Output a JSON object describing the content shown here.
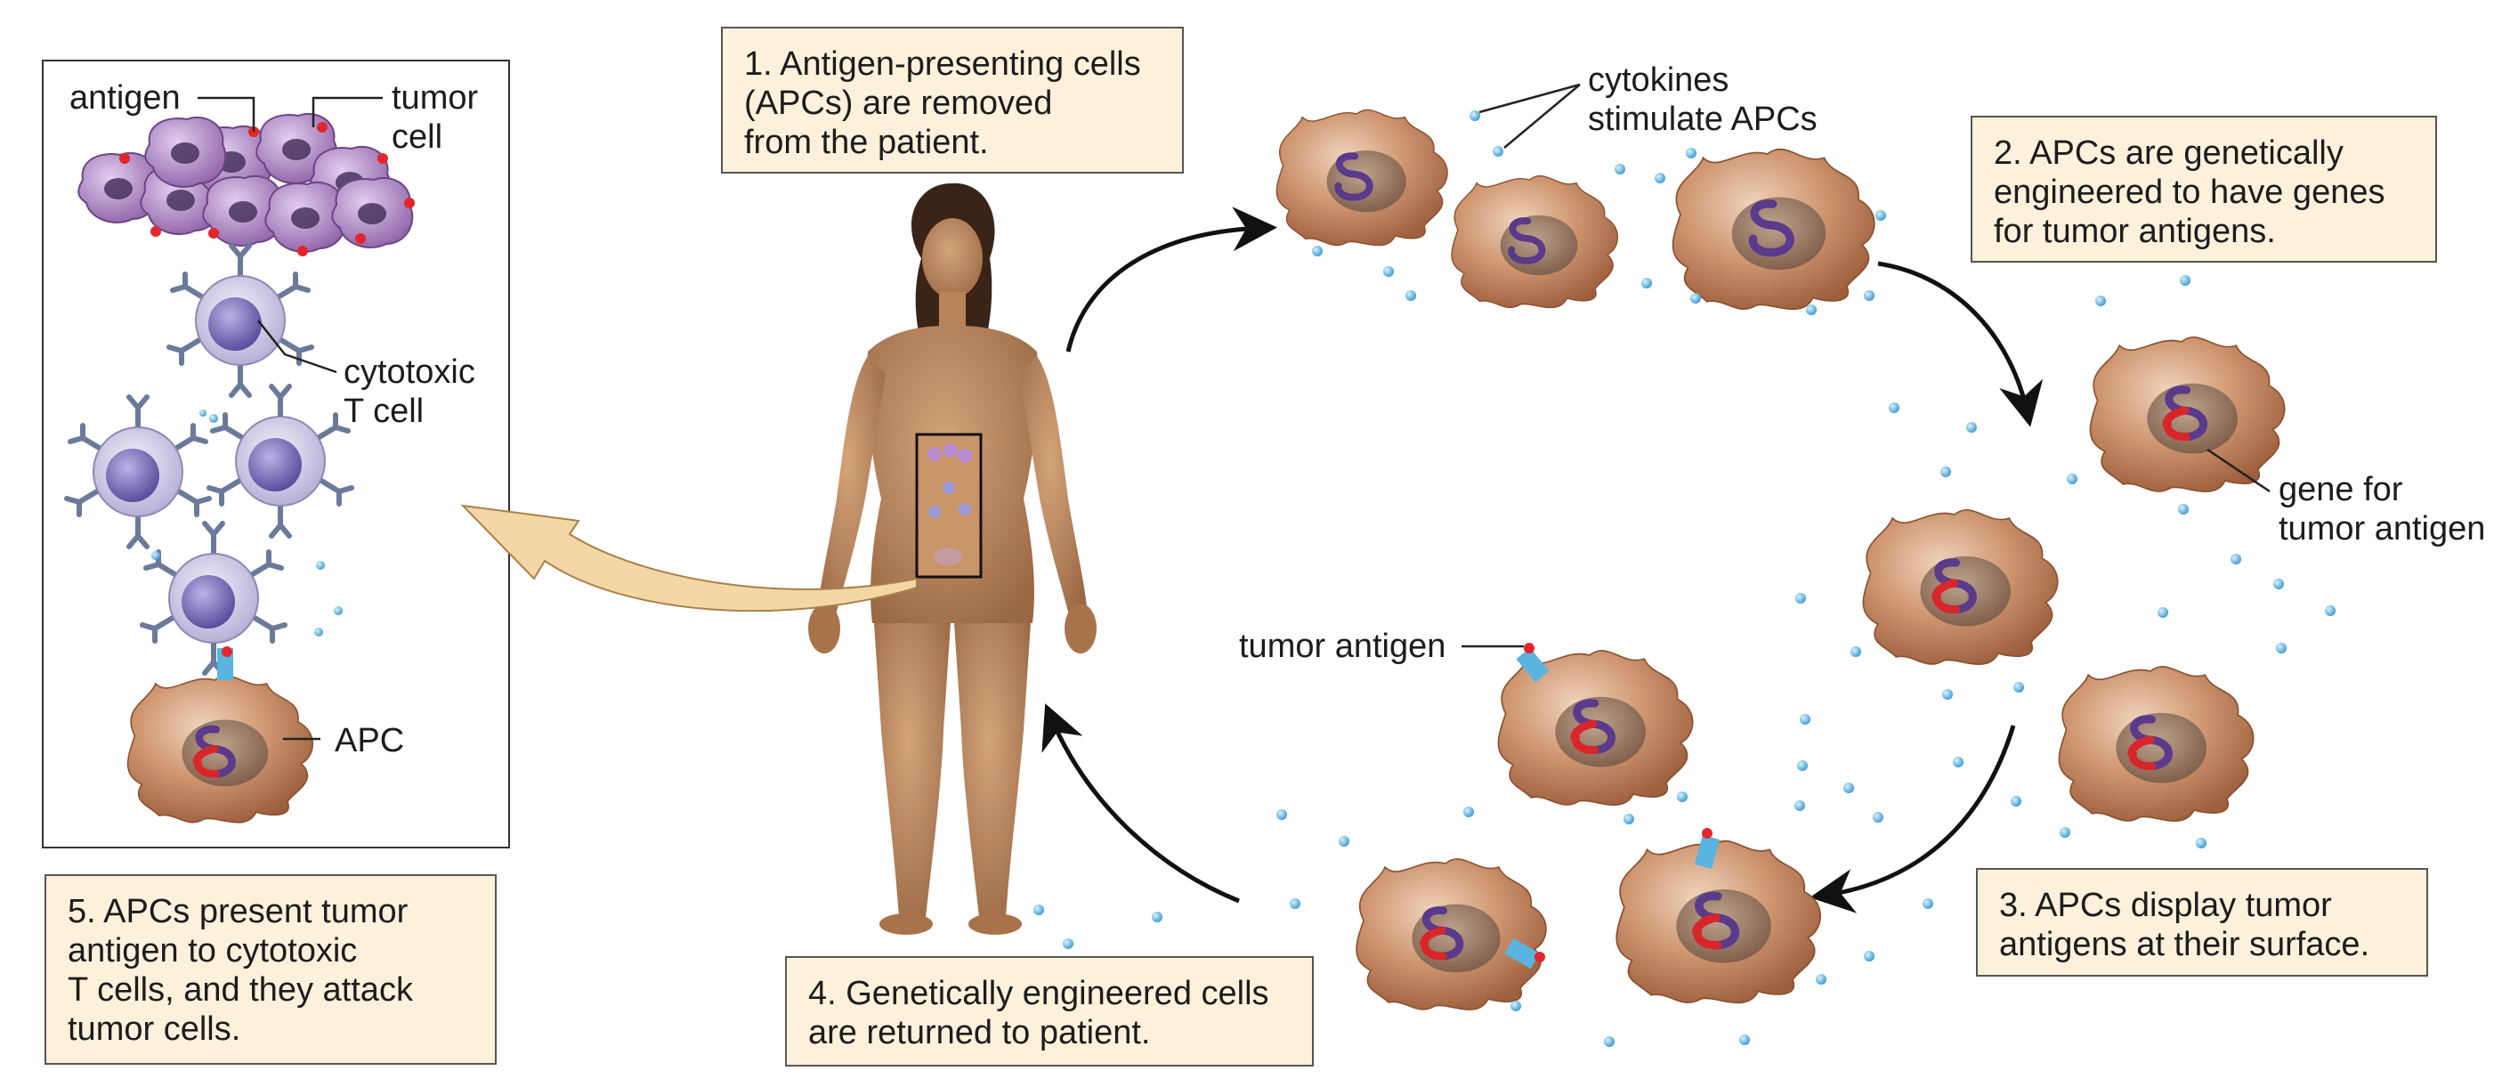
{
  "steps": {
    "step1": "1. Antigen-presenting cells\n(APCs) are removed\nfrom the patient.",
    "step2": "2. APCs are genetically\nengineered to have genes\nfor tumor antigens.",
    "step3": "3. APCs display tumor\nantigens at their surface.",
    "step4": "4. Genetically engineered cells\nare returned to patient.",
    "step5": "5. APCs present tumor\nantigen to cytotoxic\nT cells, and they attack\ntumor cells."
  },
  "labels": {
    "antigen": "antigen",
    "tumor_cell": "tumor\ncell",
    "cytotoxic_t_cell": "cytotoxic\nT cell",
    "apc": "APC",
    "cytokines": "cytokines\nstimulate APCs",
    "gene_for_tumor_antigen": "gene for\ntumor antigen",
    "tumor_antigen": "tumor antigen"
  },
  "colors": {
    "box_fill": "#fdf1dc",
    "apc_cell": "#c98a62",
    "apc_nucleus": "#8a6a58",
    "gene_purple": "#5a3a8a",
    "gene_red": "#d8262b",
    "cytokine": "#5ab4e0",
    "t_cell": "#b8b4dc",
    "tumor_cell": "#a07ab8",
    "receptor": "#6a7a9a",
    "skin": "#b88358",
    "return_arrow": "#f5d7a6"
  },
  "icons": [
    "apc-cell-icon",
    "tumor-cell-icon",
    "t-cell-icon",
    "cytokine-icon",
    "human-figure-icon",
    "gene-icon"
  ]
}
